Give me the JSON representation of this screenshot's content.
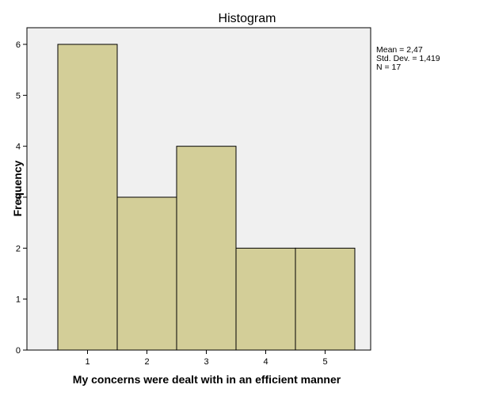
{
  "chart_data": {
    "type": "bar",
    "title": "Histogram",
    "xlabel": "My concerns were dealt with in an efficient manner",
    "ylabel": "Frequency",
    "categories": [
      "1",
      "2",
      "3",
      "4",
      "5"
    ],
    "values": [
      6,
      3,
      4,
      2,
      2
    ],
    "ylim": [
      0,
      6
    ],
    "y_ticks": [
      "0",
      "1",
      "2",
      "3",
      "4",
      "5",
      "6"
    ],
    "grid": false,
    "legend": "none",
    "stats": {
      "mean": "Mean = 2,47",
      "std_dev": "Std. Dev. = 1,419",
      "n": "N = 17"
    },
    "colors": {
      "bar_fill": "#d3ce98",
      "bar_stroke": "#000000",
      "plot_background": "#f0f0f0",
      "page_background": "#ffffff"
    }
  }
}
